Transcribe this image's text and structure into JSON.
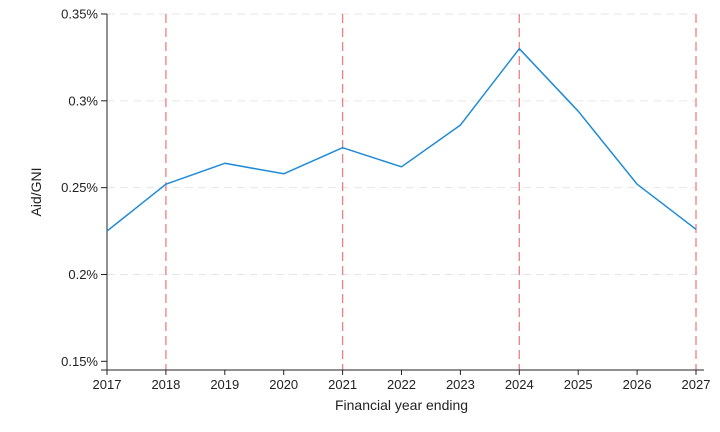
{
  "chart_data": {
    "type": "line",
    "title": "",
    "xlabel": "Financial year ending",
    "ylabel": "Aid/GNI",
    "x": [
      2017,
      2018,
      2019,
      2020,
      2021,
      2022,
      2023,
      2024,
      2025,
      2026,
      2027
    ],
    "xticks": [
      "2017",
      "2018",
      "2019",
      "2020",
      "2021",
      "2022",
      "2023",
      "2024",
      "2025",
      "2026",
      "2027"
    ],
    "yticks": [
      {
        "value": 0.15,
        "label": "0.15%"
      },
      {
        "value": 0.2,
        "label": "0.2%"
      },
      {
        "value": 0.25,
        "label": "0.25%"
      },
      {
        "value": 0.3,
        "label": "0.3%"
      },
      {
        "value": 0.35,
        "label": "0.35%"
      }
    ],
    "xlim": [
      2017,
      2027
    ],
    "ylim": [
      0.145,
      0.35
    ],
    "grid": "horizontal dashed",
    "series": [
      {
        "color": "#1f8ad8",
        "values": [
          0.225,
          0.252,
          0.264,
          0.258,
          0.273,
          0.262,
          0.286,
          0.33,
          0.294,
          0.252,
          0.226
        ]
      }
    ],
    "vertical_markers": {
      "x": [
        2018,
        2021,
        2024,
        2027
      ],
      "color": "#f07f7f",
      "style": "dashed"
    }
  }
}
